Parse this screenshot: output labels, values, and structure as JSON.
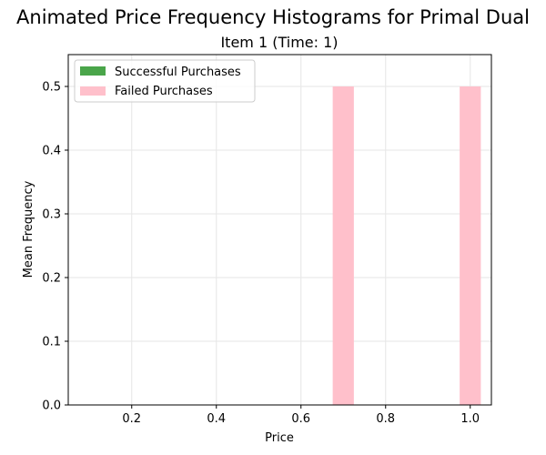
{
  "chart_data": {
    "type": "bar",
    "title": "Animated Price Frequency Histograms for Primal Dual",
    "subtitle": "Item 1 (Time: 1)",
    "xlabel": "Price",
    "ylabel": "Mean Frequency",
    "xlim": [
      0.05,
      1.05
    ],
    "ylim": [
      0,
      0.55
    ],
    "xticks": [
      "0.2",
      "0.4",
      "0.6",
      "0.8",
      "1.0"
    ],
    "xtick_values": [
      0.2,
      0.4,
      0.6,
      0.8,
      1.0
    ],
    "yticks": [
      "0.0",
      "0.1",
      "0.2",
      "0.3",
      "0.4",
      "0.5"
    ],
    "ytick_values": [
      0.0,
      0.1,
      0.2,
      0.3,
      0.4,
      0.5
    ],
    "grid": true,
    "legend_position": "top-left",
    "bin_width": 0.05,
    "series": [
      {
        "name": "Successful Purchases",
        "color": "#4aa54a",
        "bins": []
      },
      {
        "name": "Failed Purchases",
        "color": "#ffc0cb",
        "bins": [
          {
            "x": 0.7,
            "value": 0.5
          },
          {
            "x": 1.0,
            "value": 0.5
          }
        ]
      }
    ]
  }
}
